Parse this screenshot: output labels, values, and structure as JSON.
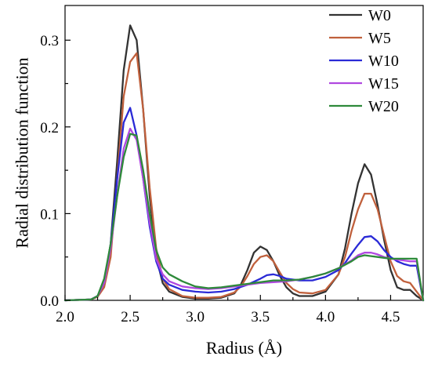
{
  "chart_data": {
    "type": "line",
    "title": "",
    "xlabel": "Radius (Å)",
    "ylabel": "Radial distribution function",
    "xlim": [
      2.0,
      4.75
    ],
    "ylim": [
      0.0,
      0.34
    ],
    "xticks": [
      2.0,
      2.5,
      3.0,
      3.5,
      4.0,
      4.5
    ],
    "xtick_labels": [
      "2.0",
      "2.5",
      "3.0",
      "3.5",
      "4.0",
      "4.5"
    ],
    "yticks": [
      0.0,
      0.1,
      0.2,
      0.3
    ],
    "ytick_labels": [
      "0.0",
      "0.1",
      "0.2",
      "0.3"
    ],
    "grid": false,
    "legend_position": "top-right",
    "series": [
      {
        "name": "W0",
        "color": "#333333",
        "x": [
          2.0,
          2.2,
          2.25,
          2.3,
          2.35,
          2.4,
          2.45,
          2.5,
          2.55,
          2.6,
          2.65,
          2.7,
          2.75,
          2.8,
          2.9,
          3.0,
          3.1,
          3.2,
          3.3,
          3.35,
          3.4,
          3.45,
          3.5,
          3.55,
          3.6,
          3.65,
          3.7,
          3.75,
          3.8,
          3.9,
          4.0,
          4.1,
          4.15,
          4.2,
          4.25,
          4.3,
          4.35,
          4.4,
          4.45,
          4.5,
          4.55,
          4.6,
          4.65,
          4.7,
          4.75
        ],
        "y": [
          0.0,
          0.001,
          0.005,
          0.02,
          0.065,
          0.16,
          0.265,
          0.317,
          0.3,
          0.22,
          0.12,
          0.05,
          0.02,
          0.01,
          0.004,
          0.002,
          0.002,
          0.003,
          0.008,
          0.018,
          0.035,
          0.055,
          0.062,
          0.058,
          0.045,
          0.028,
          0.015,
          0.008,
          0.005,
          0.005,
          0.01,
          0.03,
          0.06,
          0.1,
          0.135,
          0.157,
          0.145,
          0.11,
          0.07,
          0.035,
          0.015,
          0.012,
          0.012,
          0.005,
          0.0
        ]
      },
      {
        "name": "W5",
        "color": "#c0603c",
        "x": [
          2.0,
          2.2,
          2.25,
          2.3,
          2.35,
          2.4,
          2.45,
          2.5,
          2.55,
          2.6,
          2.65,
          2.7,
          2.75,
          2.8,
          2.9,
          3.0,
          3.1,
          3.2,
          3.3,
          3.35,
          3.4,
          3.45,
          3.5,
          3.55,
          3.6,
          3.65,
          3.7,
          3.75,
          3.8,
          3.9,
          4.0,
          4.1,
          4.15,
          4.2,
          4.25,
          4.3,
          4.35,
          4.4,
          4.45,
          4.5,
          4.55,
          4.6,
          4.65,
          4.7,
          4.75
        ],
        "y": [
          0.0,
          0.001,
          0.004,
          0.015,
          0.05,
          0.14,
          0.235,
          0.275,
          0.285,
          0.22,
          0.13,
          0.06,
          0.025,
          0.013,
          0.005,
          0.003,
          0.003,
          0.004,
          0.009,
          0.016,
          0.028,
          0.042,
          0.05,
          0.052,
          0.045,
          0.032,
          0.02,
          0.013,
          0.009,
          0.008,
          0.012,
          0.03,
          0.05,
          0.08,
          0.105,
          0.123,
          0.123,
          0.105,
          0.075,
          0.045,
          0.028,
          0.022,
          0.02,
          0.01,
          0.0
        ]
      },
      {
        "name": "W10",
        "color": "#2a2ad6",
        "x": [
          2.0,
          2.2,
          2.25,
          2.3,
          2.35,
          2.4,
          2.45,
          2.5,
          2.55,
          2.6,
          2.65,
          2.7,
          2.75,
          2.8,
          2.9,
          3.0,
          3.1,
          3.2,
          3.3,
          3.4,
          3.5,
          3.55,
          3.6,
          3.65,
          3.7,
          3.8,
          3.9,
          4.0,
          4.1,
          4.15,
          4.2,
          4.25,
          4.3,
          4.35,
          4.4,
          4.45,
          4.5,
          4.55,
          4.6,
          4.65,
          4.7,
          4.75
        ],
        "y": [
          0.0,
          0.001,
          0.005,
          0.02,
          0.065,
          0.14,
          0.205,
          0.222,
          0.19,
          0.14,
          0.085,
          0.045,
          0.025,
          0.018,
          0.012,
          0.01,
          0.009,
          0.01,
          0.013,
          0.018,
          0.025,
          0.029,
          0.03,
          0.028,
          0.025,
          0.023,
          0.023,
          0.027,
          0.035,
          0.043,
          0.054,
          0.064,
          0.073,
          0.074,
          0.068,
          0.058,
          0.05,
          0.045,
          0.042,
          0.04,
          0.04,
          0.0
        ]
      },
      {
        "name": "W15",
        "color": "#b048e0",
        "x": [
          2.0,
          2.2,
          2.25,
          2.3,
          2.35,
          2.4,
          2.45,
          2.5,
          2.55,
          2.6,
          2.65,
          2.7,
          2.75,
          2.8,
          2.9,
          3.0,
          3.1,
          3.2,
          3.3,
          3.4,
          3.5,
          3.6,
          3.7,
          3.8,
          3.9,
          4.0,
          4.1,
          4.2,
          4.25,
          4.3,
          4.35,
          4.4,
          4.45,
          4.5,
          4.55,
          4.6,
          4.65,
          4.7,
          4.75
        ],
        "y": [
          0.0,
          0.001,
          0.005,
          0.02,
          0.06,
          0.12,
          0.175,
          0.198,
          0.185,
          0.14,
          0.09,
          0.048,
          0.03,
          0.022,
          0.016,
          0.014,
          0.013,
          0.014,
          0.016,
          0.018,
          0.02,
          0.021,
          0.022,
          0.024,
          0.027,
          0.031,
          0.037,
          0.046,
          0.052,
          0.055,
          0.055,
          0.053,
          0.05,
          0.048,
          0.047,
          0.046,
          0.045,
          0.045,
          0.0
        ]
      },
      {
        "name": "W20",
        "color": "#2e8a3a",
        "x": [
          2.0,
          2.2,
          2.25,
          2.3,
          2.35,
          2.4,
          2.45,
          2.5,
          2.55,
          2.6,
          2.65,
          2.7,
          2.75,
          2.8,
          2.9,
          3.0,
          3.1,
          3.2,
          3.3,
          3.4,
          3.5,
          3.6,
          3.7,
          3.8,
          3.9,
          4.0,
          4.1,
          4.2,
          4.25,
          4.3,
          4.35,
          4.4,
          4.45,
          4.5,
          4.55,
          4.6,
          4.65,
          4.7,
          4.75
        ],
        "y": [
          0.0,
          0.001,
          0.005,
          0.025,
          0.065,
          0.12,
          0.165,
          0.192,
          0.19,
          0.15,
          0.1,
          0.058,
          0.038,
          0.03,
          0.022,
          0.016,
          0.014,
          0.015,
          0.017,
          0.019,
          0.021,
          0.023,
          0.023,
          0.024,
          0.027,
          0.031,
          0.037,
          0.045,
          0.05,
          0.052,
          0.051,
          0.05,
          0.049,
          0.048,
          0.048,
          0.048,
          0.048,
          0.048,
          0.0
        ]
      }
    ]
  }
}
